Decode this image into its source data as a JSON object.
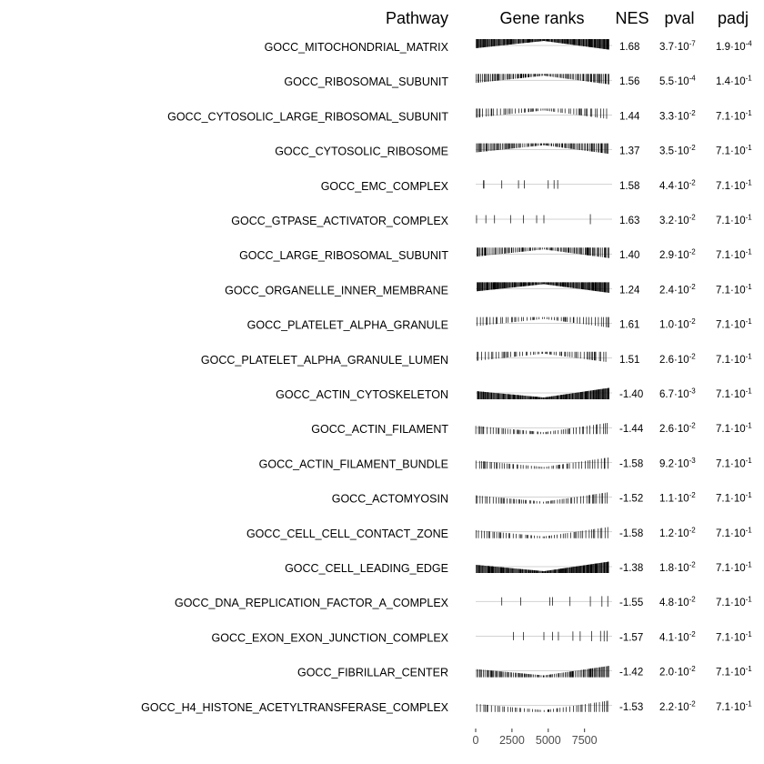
{
  "chart_data": {
    "type": "table",
    "headers": {
      "pathway": "Pathway",
      "gene_ranks": "Gene ranks",
      "nes": "NES",
      "pval": "pval",
      "padj": "padj"
    },
    "x_axis": {
      "range": [
        0,
        9400
      ],
      "ticks": [
        0,
        2500,
        5000,
        7500
      ],
      "tick_labels": [
        "0",
        "2500",
        "5000",
        "7500"
      ]
    },
    "rows": [
      {
        "pathway": "GOCC_MITOCHONDRIAL_MATRIX",
        "nes": "1.68",
        "pval_m": "3.7",
        "pval_e": "-7",
        "padj_m": "1.9",
        "padj_e": "-4",
        "pattern": "dense",
        "direction": "up"
      },
      {
        "pathway": "GOCC_RIBOSOMAL_SUBUNIT",
        "nes": "1.56",
        "pval_m": "5.5",
        "pval_e": "-4",
        "padj_m": "1.4",
        "padj_e": "-1",
        "pattern": "medium",
        "direction": "up"
      },
      {
        "pathway": "GOCC_CYTOSOLIC_LARGE_RIBOSOMAL_SUBUNIT",
        "nes": "1.44",
        "pval_m": "3.3",
        "pval_e": "-2",
        "padj_m": "7.1",
        "padj_e": "-1",
        "pattern": "sparse",
        "direction": "up"
      },
      {
        "pathway": "GOCC_CYTOSOLIC_RIBOSOME",
        "nes": "1.37",
        "pval_m": "3.5",
        "pval_e": "-2",
        "padj_m": "7.1",
        "padj_e": "-1",
        "pattern": "medium",
        "direction": "up"
      },
      {
        "pathway": "GOCC_EMC_COMPLEX",
        "nes": "1.58",
        "pval_m": "4.4",
        "pval_e": "-2",
        "padj_m": "7.1",
        "padj_e": "-1",
        "pattern": "custom",
        "direction": "up",
        "ranks": [
          540,
          570,
          1800,
          2950,
          3350,
          5000,
          5400,
          5650
        ]
      },
      {
        "pathway": "GOCC_GTPASE_ACTIVATOR_COMPLEX",
        "nes": "1.63",
        "pval_m": "3.2",
        "pval_e": "-2",
        "padj_m": "7.1",
        "padj_e": "-1",
        "pattern": "custom",
        "direction": "up",
        "ranks": [
          60,
          700,
          1300,
          2400,
          3300,
          4200,
          4700,
          7900
        ]
      },
      {
        "pathway": "GOCC_LARGE_RIBOSOMAL_SUBUNIT",
        "nes": "1.40",
        "pval_m": "2.9",
        "pval_e": "-2",
        "padj_m": "7.1",
        "padj_e": "-1",
        "pattern": "medium",
        "direction": "up"
      },
      {
        "pathway": "GOCC_ORGANELLE_INNER_MEMBRANE",
        "nes": "1.24",
        "pval_m": "2.4",
        "pval_e": "-2",
        "padj_m": "7.1",
        "padj_e": "-1",
        "pattern": "dense",
        "direction": "up"
      },
      {
        "pathway": "GOCC_PLATELET_ALPHA_GRANULE",
        "nes": "1.61",
        "pval_m": "1.0",
        "pval_e": "-2",
        "padj_m": "7.1",
        "padj_e": "-1",
        "pattern": "sparse",
        "direction": "up"
      },
      {
        "pathway": "GOCC_PLATELET_ALPHA_GRANULE_LUMEN",
        "nes": "1.51",
        "pval_m": "2.6",
        "pval_e": "-2",
        "padj_m": "7.1",
        "padj_e": "-1",
        "pattern": "sparse",
        "direction": "up"
      },
      {
        "pathway": "GOCC_ACTIN_CYTOSKELETON",
        "nes": "-1.40",
        "pval_m": "6.7",
        "pval_e": "-3",
        "padj_m": "7.1",
        "padj_e": "-1",
        "pattern": "dense",
        "direction": "down"
      },
      {
        "pathway": "GOCC_ACTIN_FILAMENT",
        "nes": "-1.44",
        "pval_m": "2.6",
        "pval_e": "-2",
        "padj_m": "7.1",
        "padj_e": "-1",
        "pattern": "sparse",
        "direction": "down"
      },
      {
        "pathway": "GOCC_ACTIN_FILAMENT_BUNDLE",
        "nes": "-1.58",
        "pval_m": "9.2",
        "pval_e": "-3",
        "padj_m": "7.1",
        "padj_e": "-1",
        "pattern": "sparse",
        "direction": "down"
      },
      {
        "pathway": "GOCC_ACTOMYOSIN",
        "nes": "-1.52",
        "pval_m": "1.1",
        "pval_e": "-2",
        "padj_m": "7.1",
        "padj_e": "-1",
        "pattern": "sparse",
        "direction": "down"
      },
      {
        "pathway": "GOCC_CELL_CELL_CONTACT_ZONE",
        "nes": "-1.58",
        "pval_m": "1.2",
        "pval_e": "-2",
        "padj_m": "7.1",
        "padj_e": "-1",
        "pattern": "sparse",
        "direction": "down"
      },
      {
        "pathway": "GOCC_CELL_LEADING_EDGE",
        "nes": "-1.38",
        "pval_m": "1.8",
        "pval_e": "-2",
        "padj_m": "7.1",
        "padj_e": "-1",
        "pattern": "dense",
        "direction": "down"
      },
      {
        "pathway": "GOCC_DNA_REPLICATION_FACTOR_A_COMPLEX",
        "nes": "-1.55",
        "pval_m": "4.8",
        "pval_e": "-2",
        "padj_m": "7.1",
        "padj_e": "-1",
        "pattern": "custom",
        "direction": "down",
        "ranks": [
          1800,
          3100,
          5100,
          5300,
          6500,
          7900,
          8700,
          9100
        ]
      },
      {
        "pathway": "GOCC_EXON_EXON_JUNCTION_COMPLEX",
        "nes": "-1.57",
        "pval_m": "4.1",
        "pval_e": "-2",
        "padj_m": "7.1",
        "padj_e": "-1",
        "pattern": "custom",
        "direction": "down",
        "ranks": [
          2600,
          3300,
          4700,
          5300,
          5700,
          6700,
          7200,
          8000,
          8600,
          8850,
          9050
        ]
      },
      {
        "pathway": "GOCC_FIBRILLAR_CENTER",
        "nes": "-1.42",
        "pval_m": "2.0",
        "pval_e": "-2",
        "padj_m": "7.1",
        "padj_e": "-1",
        "pattern": "medium",
        "direction": "down"
      },
      {
        "pathway": "GOCC_H4_HISTONE_ACETYLTRANSFERASE_COMPLEX",
        "nes": "-1.53",
        "pval_m": "2.2",
        "pval_e": "-2",
        "padj_m": "7.1",
        "padj_e": "-1",
        "pattern": "sparse",
        "direction": "down"
      }
    ]
  }
}
